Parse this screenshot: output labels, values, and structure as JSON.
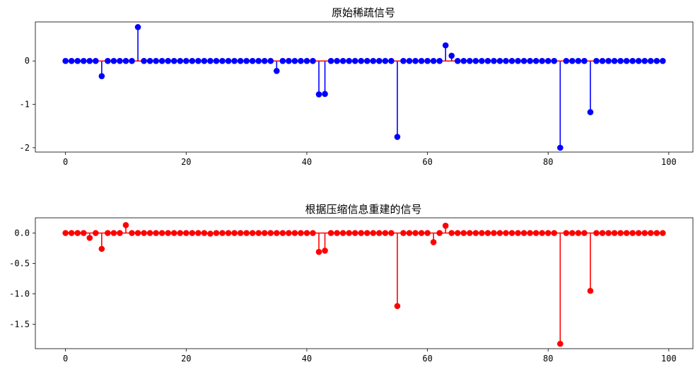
{
  "chart_data": [
    {
      "type": "stem",
      "title": "原始稀疏信号",
      "xlabel": "",
      "ylabel": "",
      "xlim": [
        -5,
        104
      ],
      "ylim": [
        -2.1,
        0.9
      ],
      "xticks": [
        0,
        20,
        40,
        60,
        80,
        100
      ],
      "yticks": [
        0,
        -1,
        -2
      ],
      "xtick_labels": [
        "0",
        "20",
        "40",
        "60",
        "80",
        "100"
      ],
      "ytick_labels": [
        "0",
        "-1",
        "-2"
      ],
      "marker_color": "#0000ff",
      "stem_color": "#0000ff",
      "baseline_color": "#ff0000",
      "n": 100,
      "points": [
        {
          "x": 6,
          "y": -0.35
        },
        {
          "x": 12,
          "y": 0.78
        },
        {
          "x": 35,
          "y": -0.23
        },
        {
          "x": 42,
          "y": -0.77
        },
        {
          "x": 43,
          "y": -0.76
        },
        {
          "x": 55,
          "y": -1.75
        },
        {
          "x": 63,
          "y": 0.36
        },
        {
          "x": 64,
          "y": 0.12
        },
        {
          "x": 82,
          "y": -2.0
        },
        {
          "x": 87,
          "y": -1.18
        }
      ]
    },
    {
      "type": "stem",
      "title": "根据压缩信息重建的信号",
      "xlabel": "",
      "ylabel": "",
      "xlim": [
        -5,
        104
      ],
      "ylim": [
        -1.9,
        0.25
      ],
      "xticks": [
        0,
        20,
        40,
        60,
        80,
        100
      ],
      "yticks": [
        0.0,
        -0.5,
        -1.0,
        -1.5
      ],
      "xtick_labels": [
        "0",
        "20",
        "40",
        "60",
        "80",
        "100"
      ],
      "ytick_labels": [
        "0.0",
        "-0.5",
        "-1.0",
        "-1.5"
      ],
      "marker_color": "#ff0000",
      "stem_color": "#ff0000",
      "baseline_color": "#ff0000",
      "n": 100,
      "points": [
        {
          "x": 4,
          "y": -0.08
        },
        {
          "x": 6,
          "y": -0.26
        },
        {
          "x": 10,
          "y": 0.13
        },
        {
          "x": 24,
          "y": -0.01
        },
        {
          "x": 42,
          "y": -0.31
        },
        {
          "x": 43,
          "y": -0.29
        },
        {
          "x": 55,
          "y": -1.2
        },
        {
          "x": 61,
          "y": -0.15
        },
        {
          "x": 63,
          "y": 0.12
        },
        {
          "x": 82,
          "y": -1.82
        },
        {
          "x": 87,
          "y": -0.95
        }
      ]
    }
  ]
}
